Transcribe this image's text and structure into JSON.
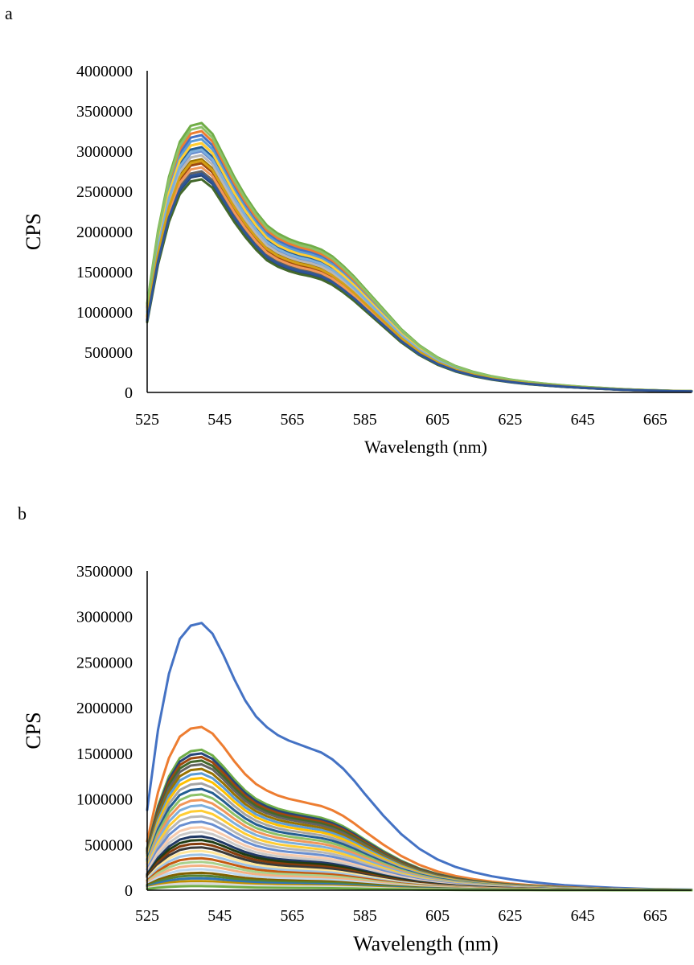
{
  "panels": {
    "a": "a",
    "b": "b"
  },
  "chart_data": [
    {
      "id": "a",
      "type": "line",
      "xlabel": "Wavelength (nm)",
      "ylabel": "CPS",
      "xlim": [
        525,
        675
      ],
      "ylim": [
        0,
        4000000
      ],
      "xticks": [
        525,
        545,
        565,
        585,
        605,
        625,
        645,
        665
      ],
      "yticks": [
        0,
        500000,
        1000000,
        1500000,
        2000000,
        2500000,
        3000000,
        3500000,
        4000000
      ],
      "ytick_labels": [
        "0",
        "500000",
        "1000000",
        "1500000",
        "2000000",
        "2500000",
        "3000000",
        "3500000",
        "4000000"
      ],
      "grid": false,
      "legend": "none",
      "x": [
        525,
        528,
        531,
        534,
        537,
        540,
        543,
        546,
        549,
        552,
        555,
        558,
        561,
        564,
        567,
        570,
        573,
        576,
        579,
        582,
        585,
        590,
        595,
        600,
        605,
        610,
        615,
        620,
        625,
        630,
        635,
        640,
        645,
        650,
        655,
        660,
        665,
        670,
        675
      ],
      "profile": [
        0.33,
        0.6,
        0.8,
        0.93,
        0.99,
        1.0,
        0.96,
        0.88,
        0.8,
        0.73,
        0.67,
        0.62,
        0.59,
        0.57,
        0.555,
        0.545,
        0.53,
        0.505,
        0.47,
        0.43,
        0.385,
        0.31,
        0.235,
        0.175,
        0.13,
        0.098,
        0.076,
        0.06,
        0.048,
        0.039,
        0.032,
        0.026,
        0.021,
        0.017,
        0.013,
        0.01,
        0.008,
        0.006,
        0.005
      ],
      "series": [
        {
          "color": "#4472c4",
          "peak": 3200000
        },
        {
          "color": "#ed7d31",
          "peak": 3250000
        },
        {
          "color": "#a5a5a5",
          "peak": 3000000
        },
        {
          "color": "#ffc000",
          "peak": 3100000
        },
        {
          "color": "#5b9bd5",
          "peak": 3150000
        },
        {
          "color": "#70ad47",
          "peak": 3350000
        },
        {
          "color": "#264478",
          "peak": 2700000
        },
        {
          "color": "#9e480e",
          "peak": 2850000
        },
        {
          "color": "#636363",
          "peak": 2750000
        },
        {
          "color": "#997300",
          "peak": 2900000
        },
        {
          "color": "#255e91",
          "peak": 3050000
        },
        {
          "color": "#43682b",
          "peak": 2650000
        },
        {
          "color": "#698ed0",
          "peak": 3000000
        },
        {
          "color": "#f1975a",
          "peak": 2800000
        },
        {
          "color": "#b7b7b7",
          "peak": 2950000
        },
        {
          "color": "#ffcd33",
          "peak": 3100000
        },
        {
          "color": "#7cafdd",
          "peak": 3020000
        },
        {
          "color": "#8cc168",
          "peak": 3300000
        },
        {
          "color": "#d4a017",
          "peak": 2880000
        },
        {
          "color": "#2f5597",
          "peak": 2720000
        }
      ]
    },
    {
      "id": "b",
      "type": "line",
      "xlabel": "Wavelength (nm)",
      "ylabel": "CPS",
      "xlim": [
        525,
        675
      ],
      "ylim": [
        0,
        3500000
      ],
      "xticks": [
        525,
        545,
        565,
        585,
        605,
        625,
        645,
        665
      ],
      "yticks": [
        0,
        500000,
        1000000,
        1500000,
        2000000,
        2500000,
        3000000,
        3500000
      ],
      "ytick_labels": [
        "0",
        "500000",
        "1000000",
        "1500000",
        "2000000",
        "2500000",
        "3000000",
        "3500000"
      ],
      "grid": false,
      "legend": "none",
      "x": [
        525,
        528,
        531,
        534,
        537,
        540,
        543,
        546,
        549,
        552,
        555,
        558,
        561,
        564,
        567,
        570,
        573,
        576,
        579,
        582,
        585,
        590,
        595,
        600,
        605,
        610,
        615,
        620,
        625,
        630,
        635,
        640,
        645,
        650,
        655,
        660,
        665,
        670,
        675
      ],
      "profile": [
        0.3,
        0.6,
        0.81,
        0.94,
        0.99,
        1.0,
        0.96,
        0.88,
        0.79,
        0.71,
        0.65,
        0.61,
        0.58,
        0.56,
        0.545,
        0.53,
        0.515,
        0.49,
        0.455,
        0.41,
        0.36,
        0.28,
        0.21,
        0.155,
        0.115,
        0.087,
        0.067,
        0.052,
        0.041,
        0.032,
        0.025,
        0.019,
        0.015,
        0.011,
        0.008,
        0.006,
        0.004,
        0.003,
        0.002
      ],
      "series": [
        {
          "color": "#4472c4",
          "peak": 2930000
        },
        {
          "color": "#ed7d31",
          "peak": 1790000
        },
        {
          "color": "#70ad47",
          "peak": 1540000
        },
        {
          "color": "#264478",
          "peak": 1500000
        },
        {
          "color": "#9e480e",
          "peak": 1460000
        },
        {
          "color": "#43682b",
          "peak": 1420000
        },
        {
          "color": "#636363",
          "peak": 1380000
        },
        {
          "color": "#997300",
          "peak": 1330000
        },
        {
          "color": "#5b9bd5",
          "peak": 1280000
        },
        {
          "color": "#ffc000",
          "peak": 1230000
        },
        {
          "color": "#a5a5a5",
          "peak": 1170000
        },
        {
          "color": "#255e91",
          "peak": 1110000
        },
        {
          "color": "#8cc168",
          "peak": 1050000
        },
        {
          "color": "#f1975a",
          "peak": 990000
        },
        {
          "color": "#7cafdd",
          "peak": 930000
        },
        {
          "color": "#ffcd33",
          "peak": 870000
        },
        {
          "color": "#b7b7b7",
          "peak": 810000
        },
        {
          "color": "#698ed0",
          "peak": 750000
        },
        {
          "color": "#f8cbad",
          "peak": 690000
        },
        {
          "color": "#c9c9c9",
          "peak": 640000
        },
        {
          "color": "#203864",
          "peak": 590000
        },
        {
          "color": "#1f3c14",
          "peak": 550000
        },
        {
          "color": "#843c0c",
          "peak": 510000
        },
        {
          "color": "#3a3a3a",
          "peak": 470000
        },
        {
          "color": "#ffe699",
          "peak": 430000
        },
        {
          "color": "#9dc3e6",
          "peak": 390000
        },
        {
          "color": "#c55a11",
          "peak": 350000
        },
        {
          "color": "#a9d18e",
          "peak": 310000
        },
        {
          "color": "#f4b183",
          "peak": 270000
        },
        {
          "color": "#bdd7ee",
          "peak": 230000
        },
        {
          "color": "#7f6000",
          "peak": 190000
        },
        {
          "color": "#548235",
          "peak": 160000
        },
        {
          "color": "#2e75b6",
          "peak": 130000
        },
        {
          "color": "#bf9000",
          "peak": 100000
        },
        {
          "color": "#d9d9d9",
          "peak": 75000
        },
        {
          "color": "#70ad47",
          "peak": 45000
        }
      ]
    }
  ]
}
